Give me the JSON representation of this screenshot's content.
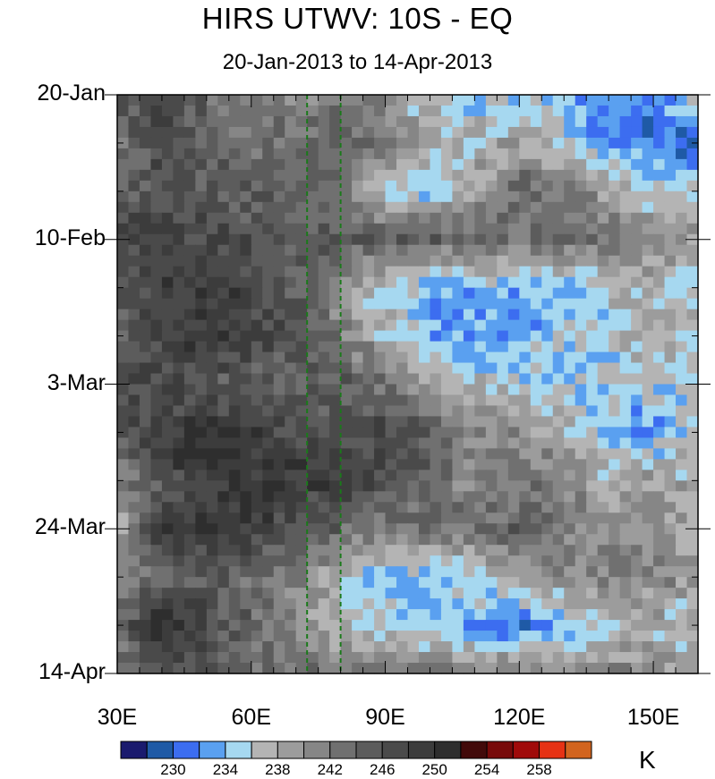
{
  "title": "HIRS UTWV: 10S - EQ",
  "subtitle": "20-Jan-2013 to 14-Apr-2013",
  "chart_data": {
    "type": "heatmap",
    "title": "HIRS UTWV: 10S - EQ",
    "subtitle": "20-Jan-2013 to 14-Apr-2013",
    "x_axis": {
      "label": "",
      "range_degE": [
        30,
        160
      ],
      "tick_labels": [
        "30E",
        "60E",
        "90E",
        "120E",
        "150E"
      ],
      "tick_values": [
        30,
        60,
        90,
        120,
        150
      ],
      "minor_tick_step": 5
    },
    "y_axis": {
      "label": "",
      "direction": "time increases downward",
      "tick_labels": [
        "20-Jan",
        "10-Feb",
        "3-Mar",
        "24-Mar",
        "14-Apr"
      ],
      "tick_values": [
        "2013-01-20",
        "2013-02-10",
        "2013-03-03",
        "2013-03-24",
        "2013-04-14"
      ],
      "minor_tick_step_days": 7
    },
    "reference_lines": {
      "style": "green dashed vertical",
      "x_degE": [
        72.5,
        80
      ]
    },
    "colorbar": {
      "unit": "K",
      "levels": [
        228,
        230,
        232,
        234,
        236,
        238,
        240,
        242,
        244,
        246,
        248,
        250,
        252,
        254,
        256,
        258,
        260
      ],
      "labeled_levels": [
        "230",
        "234",
        "238",
        "242",
        "246",
        "250",
        "254",
        "258"
      ],
      "colors": [
        "#1a1a6e",
        "#1f5aa6",
        "#3c6df0",
        "#5aa0f0",
        "#a6d8f0",
        "#b4b4b4",
        "#9c9c9c",
        "#868686",
        "#707070",
        "#5c5c5c",
        "#4a4a4a",
        "#3c3c3c",
        "#2e2e2e",
        "#420a0a",
        "#780a0a",
        "#a00a0a",
        "#e63214",
        "#d2641e"
      ],
      "legend_position": "bottom"
    },
    "value_grid": {
      "note": "approximate UTWV brightness temperature (K), rows = time from 20-Jan to 14-Apr, columns = longitude 30E to 160E in 10-degree steps",
      "lon_degE": [
        30,
        40,
        50,
        60,
        70,
        80,
        90,
        100,
        110,
        120,
        130,
        140,
        150,
        160
      ],
      "dates": [
        "2013-01-20",
        "2013-01-27",
        "2013-02-03",
        "2013-02-10",
        "2013-02-17",
        "2013-02-24",
        "2013-03-03",
        "2013-03-10",
        "2013-03-17",
        "2013-03-24",
        "2013-03-31",
        "2013-04-07",
        "2013-04-14"
      ],
      "values": [
        [
          246,
          248,
          244,
          242,
          241,
          243,
          240,
          236,
          234,
          235,
          233,
          232,
          233,
          235
        ],
        [
          242,
          247,
          245,
          243,
          243,
          245,
          242,
          238,
          237,
          239,
          236,
          233,
          231,
          230
        ],
        [
          244,
          246,
          246,
          244,
          245,
          243,
          236,
          234,
          239,
          244,
          242,
          239,
          236,
          236
        ],
        [
          248,
          249,
          247,
          246,
          246,
          245,
          244,
          245,
          243,
          242,
          244,
          243,
          240,
          239
        ],
        [
          244,
          248,
          249,
          247,
          245,
          240,
          236,
          233,
          234,
          233,
          234,
          236,
          238,
          236
        ],
        [
          244,
          248,
          249,
          248,
          246,
          242,
          237,
          234,
          232,
          233,
          235,
          236,
          238,
          236
        ],
        [
          246,
          247,
          246,
          244,
          244,
          245,
          243,
          238,
          237,
          236,
          234,
          235,
          235,
          236
        ],
        [
          245,
          249,
          250,
          249,
          247,
          246,
          248,
          245,
          240,
          240,
          238,
          234,
          233,
          236
        ],
        [
          240,
          246,
          249,
          250,
          249,
          249,
          247,
          244,
          241,
          243,
          242,
          238,
          239,
          238
        ],
        [
          238,
          248,
          249,
          248,
          247,
          244,
          242,
          243,
          242,
          245,
          241,
          240,
          240,
          238
        ],
        [
          242,
          244,
          245,
          243,
          242,
          237,
          233,
          234,
          236,
          239,
          241,
          242,
          241,
          239
        ],
        [
          244,
          252,
          247,
          244,
          240,
          237,
          236,
          234,
          233,
          231,
          233,
          236,
          238,
          236
        ],
        [
          242,
          246,
          245,
          243,
          244,
          242,
          242,
          243,
          241,
          242,
          240,
          242,
          240,
          238
        ]
      ]
    }
  }
}
